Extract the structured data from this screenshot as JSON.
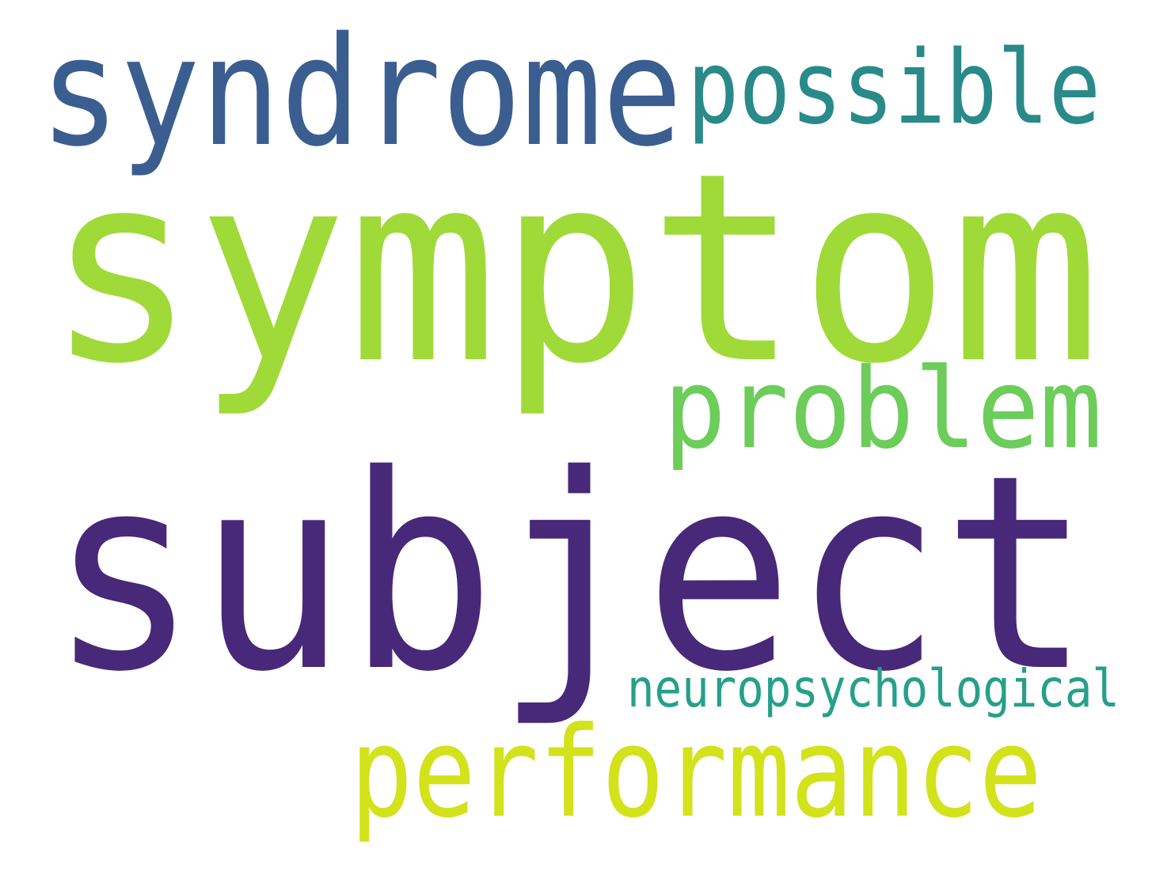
{
  "words": [
    {
      "id": "syndrome",
      "text": "syndrome",
      "color": "#3b5e91"
    },
    {
      "id": "possible",
      "text": "possible",
      "color": "#2a8a8a"
    },
    {
      "id": "symptom",
      "text": "symptom",
      "color": "#a0da39"
    },
    {
      "id": "problem",
      "text": "problem",
      "color": "#6ccd5a"
    },
    {
      "id": "subject",
      "text": "subject",
      "color": "#482878"
    },
    {
      "id": "neuropsychological",
      "text": "neuropsychological",
      "color": "#26a08a"
    },
    {
      "id": "performance",
      "text": "performance",
      "color": "#d2e21b"
    }
  ]
}
